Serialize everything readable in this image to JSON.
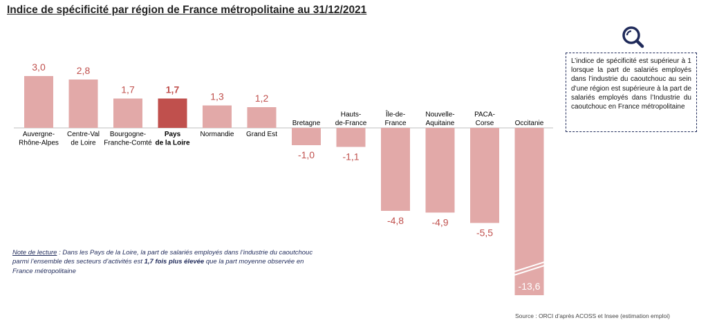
{
  "title": "Indice de spécificité par région de France métropolitaine au 31/12/2021",
  "info_box": "L’indice de spécificité est supérieur à 1 lorsque la part de salariés employés dans l’industrie du caoutchouc au sein d’une région est supérieure à la part de salariés employés dans l’Industrie du caoutchouc en France métropolitaine",
  "note": {
    "label": "Note de lecture",
    "text_before": " : Dans les Pays de la Loire, la part de salariés employés dans l’industrie du caoutchouc parmi l’ensemble des secteurs d’activités est ",
    "bold": "1,7 fois plus élevée",
    "text_after": " que la part moyenne observée en France métropolitaine"
  },
  "source": "Source : ORCI d’après ACOSS et Insee (estimation emploi)",
  "colors": {
    "bar": "#e2a9a8",
    "highlight": "#c0504d",
    "value_text": "#c0504d",
    "note_text": "#1f2a5a"
  },
  "icons": {
    "info": "magnifier-icon"
  },
  "chart_data": {
    "type": "bar",
    "categories": [
      "Auvergne-Rhône-Alpes",
      "Centre-Val de Loire",
      "Bourgogne-Franche-Comté",
      "Pays de la Loire",
      "Normandie",
      "Grand Est",
      "Bretagne",
      "Hauts-de-France",
      "Île-de-France",
      "Nouvelle-Aquitaine",
      "PACA-Corse",
      "Occitanie"
    ],
    "category_lines": [
      [
        "Auvergne-",
        "Rhône-Alpes"
      ],
      [
        "Centre-Val",
        "de Loire"
      ],
      [
        "Bourgogne-",
        "Franche-Comté"
      ],
      [
        "Pays",
        "de la Loire"
      ],
      [
        "Normandie"
      ],
      [
        "Grand Est"
      ],
      [
        "Bretagne"
      ],
      [
        "Hauts-",
        "de-France"
      ],
      [
        "Île-de-",
        "France"
      ],
      [
        "Nouvelle-",
        "Aquitaine"
      ],
      [
        "PACA-",
        "Corse"
      ],
      [
        "Occitanie"
      ]
    ],
    "values": [
      3.0,
      2.8,
      1.7,
      1.7,
      1.3,
      1.2,
      -1.0,
      -1.1,
      -4.8,
      -4.9,
      -5.5,
      -13.6
    ],
    "value_labels": [
      "3,0",
      "2,8",
      "1,7",
      "1,7",
      "1,3",
      "1,2",
      "-1,0",
      "-1,1",
      "-4,8",
      "-4,9",
      "-5,5",
      "-13,6"
    ],
    "highlight": "Pays de la Loire",
    "axis_break": "Occitanie",
    "xlabel": "",
    "ylabel": ""
  }
}
